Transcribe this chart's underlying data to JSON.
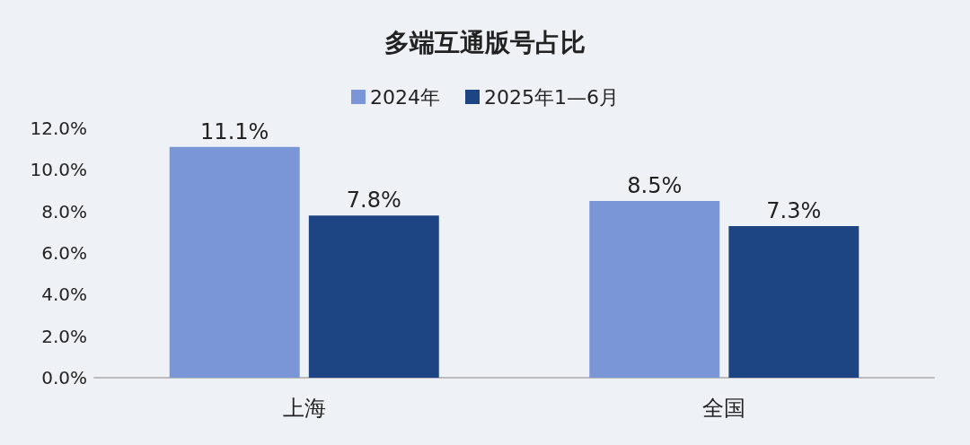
{
  "chart_data": {
    "type": "bar",
    "title": "多端互通版号占比",
    "categories": [
      "上海",
      "全国"
    ],
    "series": [
      {
        "name": "2024年",
        "color": "#7b96d6",
        "values": [
          11.1,
          8.5
        ],
        "value_labels": [
          "11.1%",
          "8.5%"
        ]
      },
      {
        "name": "2025年1—6月",
        "color": "#1d4583",
        "values": [
          7.8,
          7.3
        ],
        "value_labels": [
          "7.8%",
          "7.3%"
        ]
      }
    ],
    "ylim": [
      0,
      12
    ],
    "yticks": [
      {
        "value": 0,
        "label": "0.0%"
      },
      {
        "value": 2,
        "label": "2.0%"
      },
      {
        "value": 4,
        "label": "4.0%"
      },
      {
        "value": 6,
        "label": "6.0%"
      },
      {
        "value": 8,
        "label": "8.0%"
      },
      {
        "value": 10,
        "label": "10.0%"
      },
      {
        "value": 12,
        "label": "12.0%"
      }
    ],
    "grid": false,
    "legend": "top"
  }
}
